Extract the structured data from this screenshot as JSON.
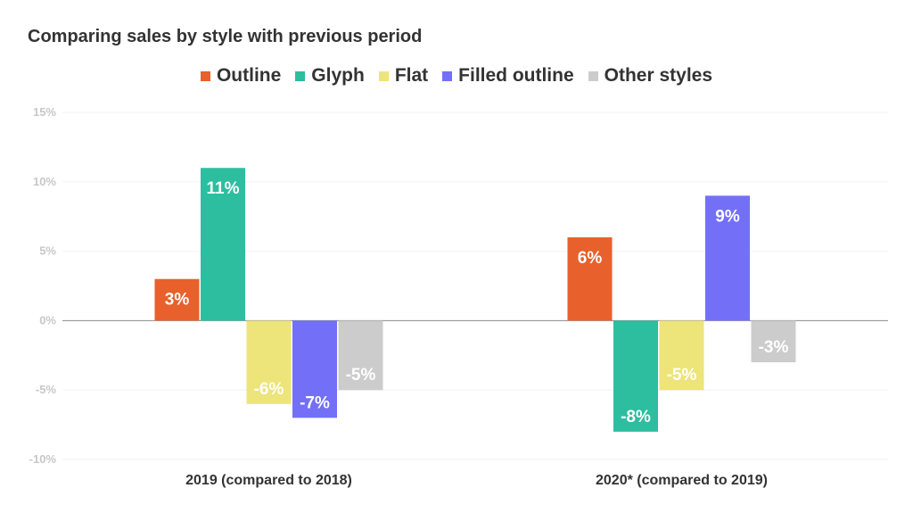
{
  "chart_data": {
    "type": "bar",
    "title": "Comparing sales by style with previous period",
    "categories": [
      "2019 (compared to 2018)",
      "2020* (compared to 2019)"
    ],
    "series": [
      {
        "name": "Outline",
        "color": "#e8602c",
        "values": [
          3,
          6
        ],
        "labels": [
          "3%",
          "6%"
        ]
      },
      {
        "name": "Glyph",
        "color": "#2dbea0",
        "values": [
          11,
          -8
        ],
        "labels": [
          "11%",
          "-8%"
        ]
      },
      {
        "name": "Flat",
        "color": "#ede47a",
        "values": [
          -6,
          -5
        ],
        "labels": [
          "-6%",
          "-5%"
        ]
      },
      {
        "name": "Filled outline",
        "color": "#7370f7",
        "values": [
          -7,
          9
        ],
        "labels": [
          "-7%",
          "9%"
        ]
      },
      {
        "name": "Other styles",
        "color": "#cccccc",
        "values": [
          -5,
          -3
        ],
        "labels": [
          "-5%",
          "-3%"
        ]
      }
    ],
    "ylim": [
      -10,
      15
    ],
    "yticks": [
      15,
      10,
      5,
      0,
      -5,
      -10
    ],
    "ytick_labels": [
      "15%",
      "10%",
      "5%",
      "0%",
      "-5%",
      "-10%"
    ],
    "grid": true,
    "legend_position": "top-center"
  }
}
